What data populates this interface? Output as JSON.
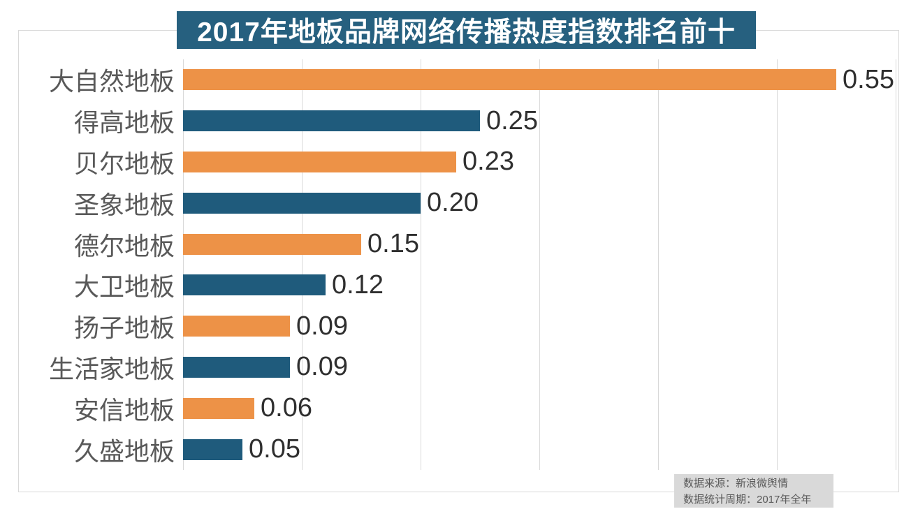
{
  "title": {
    "text": "2017年地板品牌网络传播热度指数排名前十",
    "bg_color": "#26607f",
    "text_color": "#ffffff"
  },
  "source_box": {
    "line1": "数据来源：新浪微舆情",
    "line2": "数据统计周期：2017年全年",
    "bg_color": "#d9d9d9",
    "text_color": "#595959"
  },
  "colors": {
    "bar_orange": "#ed9247",
    "bar_blue": "#1f5b7c",
    "gridline": "#d9d9d9",
    "frame_border": "#d9d9d9",
    "category_label": "#595959",
    "value_label": "#2f2f2f"
  },
  "chart_data": {
    "type": "bar",
    "orientation": "horizontal",
    "title": "2017年地板品牌网络传播热度指数排名前十",
    "categories": [
      "大自然地板",
      "得高地板",
      "贝尔地板",
      "圣象地板",
      "德尔地板",
      "大卫地板",
      "扬子地板",
      "生活家地板",
      "安信地板",
      "久盛地板"
    ],
    "values": [
      0.55,
      0.25,
      0.23,
      0.2,
      0.15,
      0.12,
      0.09,
      0.09,
      0.06,
      0.05
    ],
    "value_labels": [
      "0.55",
      "0.25",
      "0.23",
      "0.20",
      "0.15",
      "0.12",
      "0.09",
      "0.09",
      "0.06",
      "0.05"
    ],
    "bar_colors": [
      "#ed9247",
      "#1f5b7c",
      "#ed9247",
      "#1f5b7c",
      "#ed9247",
      "#1f5b7c",
      "#ed9247",
      "#1f5b7c",
      "#ed9247",
      "#1f5b7c"
    ],
    "xlabel": "",
    "ylabel": "",
    "xlim": [
      0,
      0.6
    ],
    "grid_interval": 0.1,
    "grid": true,
    "legend": false,
    "data_labels": true
  }
}
